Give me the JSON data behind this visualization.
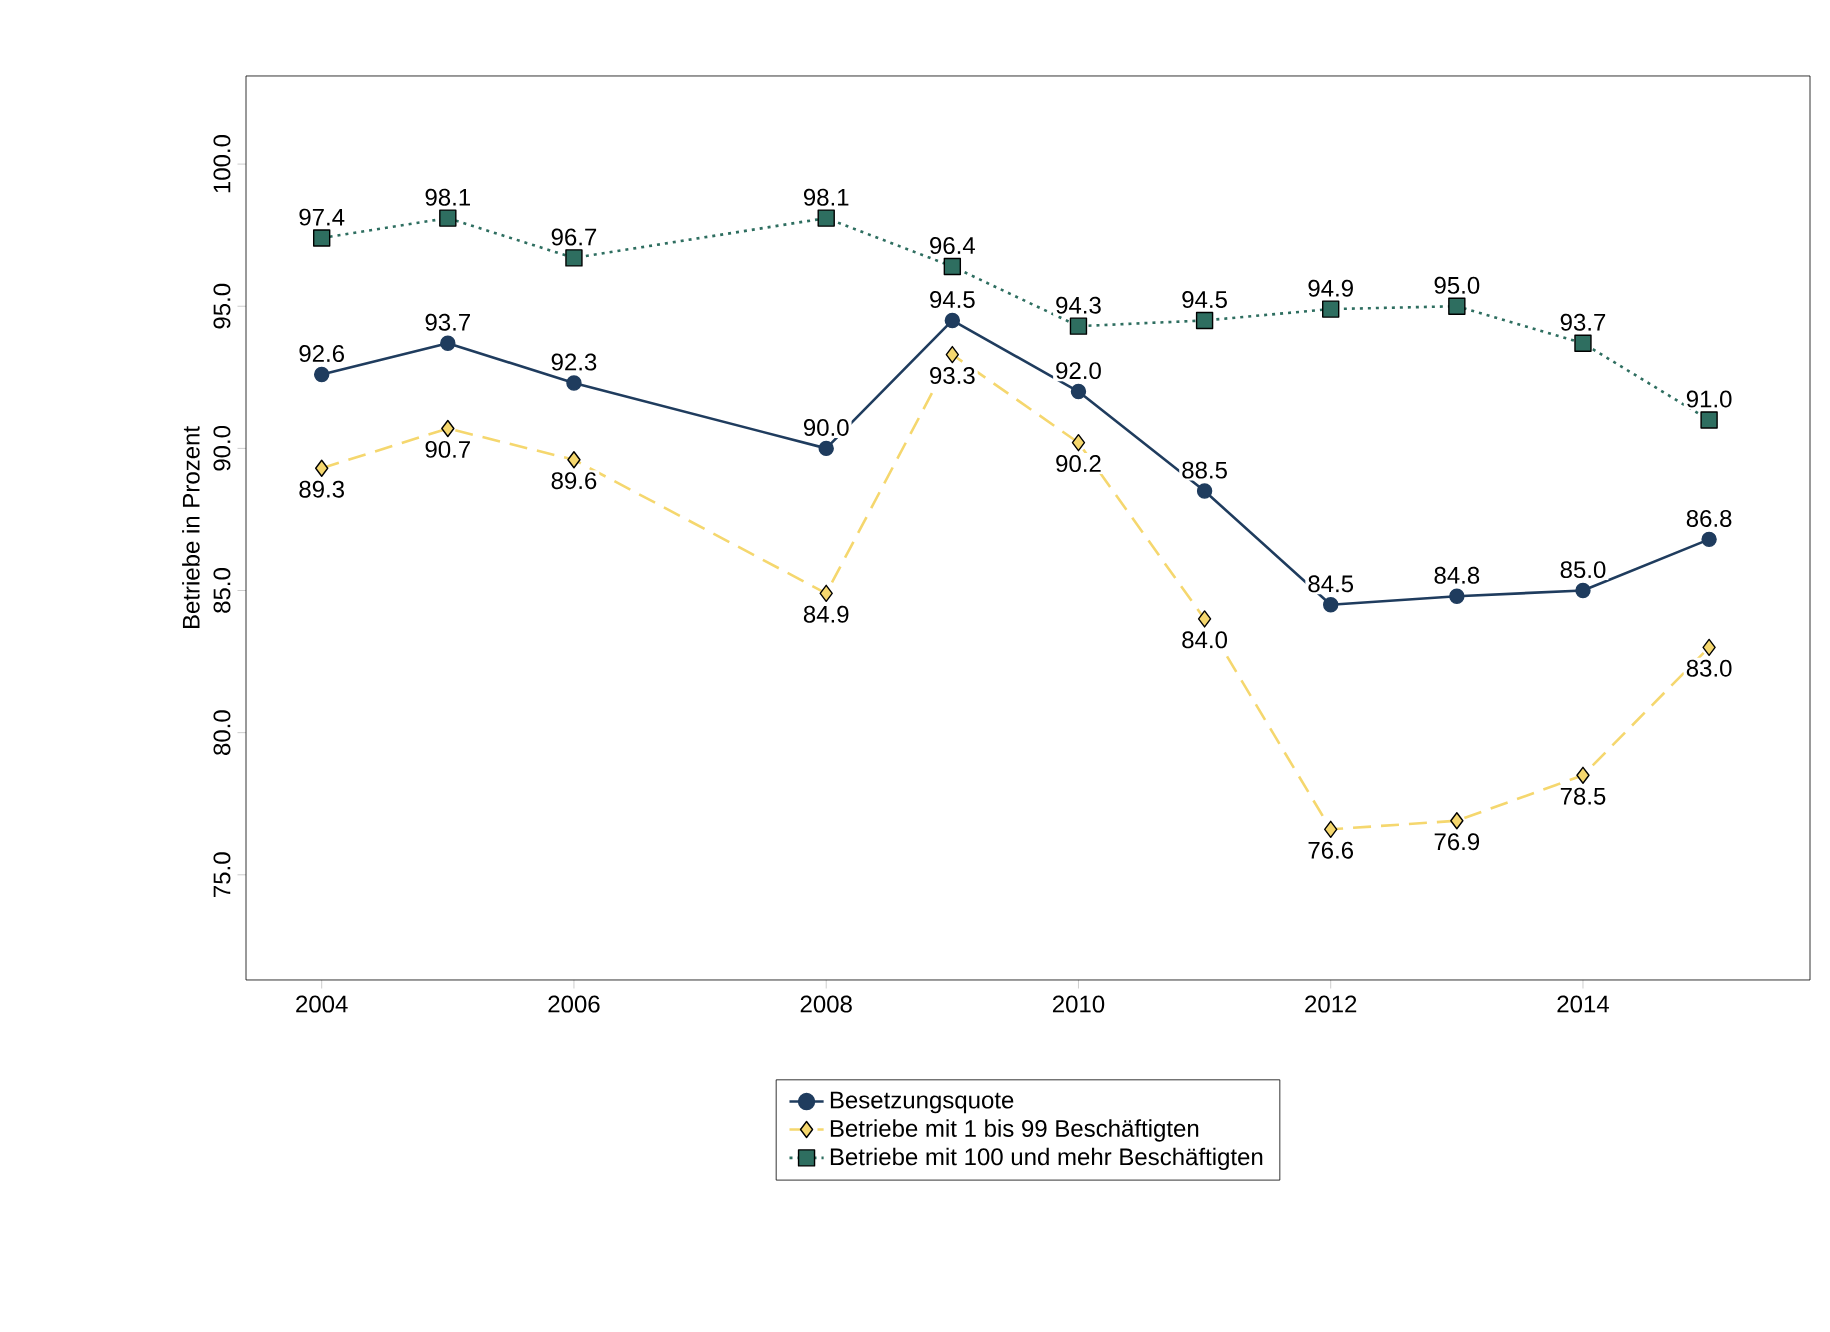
{
  "chart_data": {
    "type": "line",
    "ylabel": "Betriebe in Prozent",
    "x": [
      2004,
      2005,
      2006,
      2008,
      2009,
      2010,
      2011,
      2012,
      2013,
      2014,
      2015
    ],
    "xlim": [
      2003.4,
      2015.8
    ],
    "xticks": [
      2004,
      2006,
      2008,
      2010,
      2012,
      2014
    ],
    "ylim": [
      71.3,
      103.1
    ],
    "yticks": [
      {
        "value": 75,
        "label": "75.0"
      },
      {
        "value": 80,
        "label": "80.0"
      },
      {
        "value": 85,
        "label": "85.0"
      },
      {
        "value": 90,
        "label": "90.0"
      },
      {
        "value": 95,
        "label": "95.0"
      },
      {
        "value": 100,
        "label": "100.0"
      }
    ],
    "grid": false,
    "legend": "bottom",
    "data_labels": true,
    "series": [
      {
        "name": "Besetzungsquote",
        "color": "#1f3c5e",
        "marker": "circle",
        "line_style": "solid",
        "values": [
          92.6,
          93.7,
          92.3,
          90.0,
          94.5,
          92.0,
          88.5,
          84.5,
          84.8,
          85.0,
          86.8
        ],
        "value_labels": [
          "92.6",
          "93.7",
          "92.3",
          "90.0",
          "94.5",
          "92.0",
          "88.5",
          "84.5",
          "84.8",
          "85.0",
          "86.8"
        ]
      },
      {
        "name": "Betriebe mit 1 bis 99 Beschäftigten",
        "color": "#f5d76e",
        "marker": "diamond",
        "line_style": "dashed",
        "values": [
          89.3,
          90.7,
          89.6,
          84.9,
          93.3,
          90.2,
          84.0,
          76.6,
          76.9,
          78.5,
          83.0
        ],
        "value_labels": [
          "89.3",
          "90.7",
          "89.6",
          "84.9",
          "93.3",
          "90.2",
          "84.0",
          "76.6",
          "76.9",
          "78.5",
          "83.0"
        ]
      },
      {
        "name": "Betriebe mit 100 und mehr Beschäftigten",
        "color": "#2e6e60",
        "marker": "square",
        "line_style": "dotted",
        "values": [
          97.4,
          98.1,
          96.7,
          98.1,
          96.4,
          94.3,
          94.5,
          94.9,
          95.0,
          93.7,
          91.0
        ],
        "value_labels": [
          "97.4",
          "98.1",
          "96.7",
          "98.1",
          "96.4",
          "94.3",
          "94.5",
          "94.9",
          "95.0",
          "93.7",
          "91.0"
        ]
      }
    ]
  }
}
